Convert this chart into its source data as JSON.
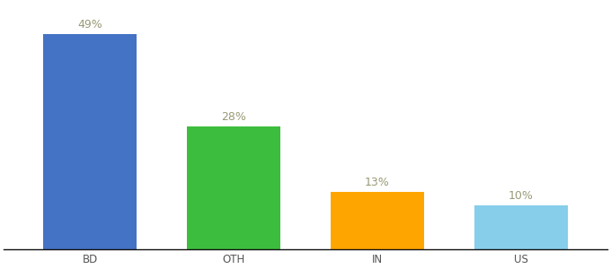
{
  "categories": [
    "BD",
    "OTH",
    "IN",
    "US"
  ],
  "values": [
    49,
    28,
    13,
    10
  ],
  "labels": [
    "49%",
    "28%",
    "13%",
    "10%"
  ],
  "bar_colors": [
    "#4472C4",
    "#3DBD3D",
    "#FFA500",
    "#87CEEB"
  ],
  "background_color": "#ffffff",
  "ylim": [
    0,
    56
  ],
  "label_color": "#999977",
  "label_fontsize": 9,
  "tick_fontsize": 8.5,
  "bar_width": 0.65
}
